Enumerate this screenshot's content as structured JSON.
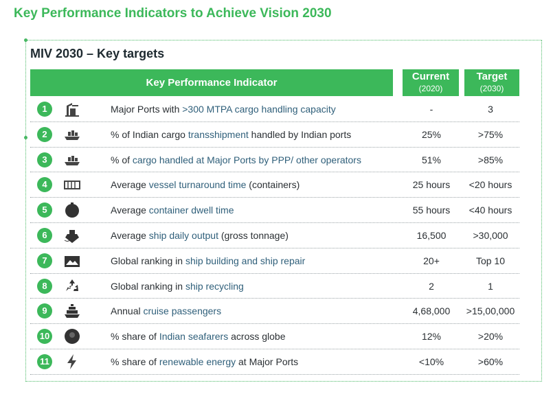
{
  "page_title": "Key Performance Indicators to Achieve Vision 2030",
  "section_title": "MIV 2030 – Key targets",
  "header": {
    "kpi": "Key Performance Indicator",
    "current": "Current",
    "current_year": "(2020)",
    "target": "Target",
    "target_year": "(2030)"
  },
  "rows": [
    {
      "num": "1",
      "icon": "port-crane-icon",
      "pre": "Major Ports with ",
      "hl": ">300 MTPA cargo handling capacity",
      "post": "",
      "current": "-",
      "target": "3"
    },
    {
      "num": "2",
      "icon": "cargo-ship-icon",
      "pre": "% of Indian cargo ",
      "hl": "transshipment",
      "post": " handled by Indian ports",
      "current": "25%",
      "target": ">75%"
    },
    {
      "num": "3",
      "icon": "cargo-ship-icon",
      "pre": "% of ",
      "hl": "cargo handled at Major Ports by PPP/ other operators",
      "post": "",
      "current": "51%",
      "target": ">85%"
    },
    {
      "num": "4",
      "icon": "container-icon",
      "pre": "Average ",
      "hl": "vessel turnaround time",
      "post": " (containers)",
      "current": "25 hours",
      "target": "<20 hours"
    },
    {
      "num": "5",
      "icon": "buoy-icon",
      "pre": "Average ",
      "hl": "container dwell time",
      "post": "",
      "current": "55 hours",
      "target": "<40 hours"
    },
    {
      "num": "6",
      "icon": "ship-front-icon",
      "pre": "Average ",
      "hl": "ship daily output",
      "post": " (gross tonnage)",
      "current": "16,500",
      "target": ">30,000"
    },
    {
      "num": "7",
      "icon": "shipyard-icon",
      "pre": "Global ranking in ",
      "hl": "ship building and ship repair",
      "post": "",
      "current": "20+",
      "target": "Top 10"
    },
    {
      "num": "8",
      "icon": "recycle-icon",
      "pre": "Global ranking in ",
      "hl": "ship recycling",
      "post": "",
      "current": "2",
      "target": "1"
    },
    {
      "num": "9",
      "icon": "cruise-icon",
      "pre": "Annual ",
      "hl": "cruise passengers",
      "post": "",
      "current": "4,68,000",
      "target": ">15,00,000"
    },
    {
      "num": "10",
      "icon": "seafarer-icon",
      "pre": "% share of ",
      "hl": "Indian seafarers",
      "post": " across globe",
      "current": "12%",
      "target": ">20%"
    },
    {
      "num": "11",
      "icon": "lightning-icon",
      "pre": "% share of ",
      "hl": "renewable energy",
      "post": " at Major Ports",
      "current": "<10%",
      "target": ">60%"
    }
  ]
}
